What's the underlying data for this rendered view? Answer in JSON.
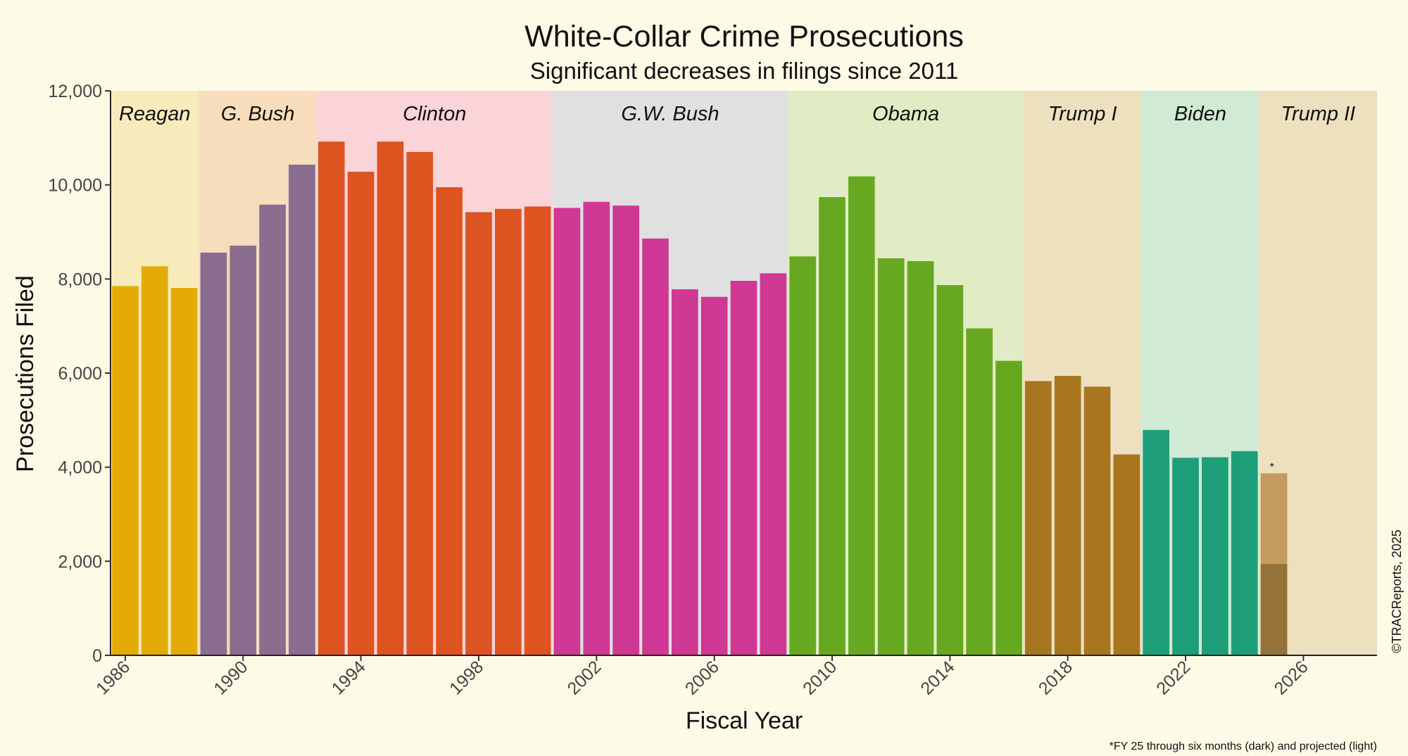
{
  "chart_data": {
    "type": "bar",
    "title": "White-Collar Crime Prosecutions",
    "subtitle": "Significant decreases in filings since 2011",
    "xlabel": "Fiscal Year",
    "ylabel": "Prosecutions Filed",
    "xlim": [
      1985.5,
      2028.5
    ],
    "ylim": [
      0,
      12000
    ],
    "yticks": [
      0,
      2000,
      4000,
      6000,
      8000,
      10000,
      12000
    ],
    "ytick_labels": [
      "0",
      "2,000",
      "4,000",
      "6,000",
      "8,000",
      "10,000",
      "12,000"
    ],
    "xticks": [
      1986,
      1990,
      1994,
      1998,
      2002,
      2006,
      2010,
      2014,
      2018,
      2022,
      2026
    ],
    "xtick_labels": [
      "1986",
      "1990",
      "1994",
      "1998",
      "2002",
      "2006",
      "2010",
      "2014",
      "2018",
      "2022",
      "2026"
    ],
    "grid": false,
    "eras": [
      {
        "name": "Reagan",
        "start": 1986,
        "end": 1988,
        "color": "#f8ebbb",
        "bar_color": "#e4aa06"
      },
      {
        "name": "G. Bush",
        "start": 1989,
        "end": 1992,
        "color": "#f7ddbc",
        "bar_color": "#8b6d8f"
      },
      {
        "name": "Clinton",
        "start": 1993,
        "end": 2000,
        "color": "#fbd4d9",
        "bar_color": "#dc5420"
      },
      {
        "name": "G.W. Bush",
        "start": 2001,
        "end": 2008,
        "color": "#e0e0e0",
        "bar_color": "#cf3894"
      },
      {
        "name": "Obama",
        "start": 2009,
        "end": 2016,
        "color": "#e1ebc4",
        "bar_color": "#67a821"
      },
      {
        "name": "Trump I",
        "start": 2017,
        "end": 2020,
        "color": "#ece0bf",
        "bar_color": "#a7761e"
      },
      {
        "name": "Biden",
        "start": 2021,
        "end": 2024,
        "color": "#d0ead4",
        "bar_color": "#1d9e79"
      },
      {
        "name": "Trump II",
        "start": 2025,
        "end": 2028,
        "color": "#ece0bf",
        "bar_color": "#a7761e"
      }
    ],
    "bars": [
      {
        "year": 1986,
        "value": 7850
      },
      {
        "year": 1987,
        "value": 8270
      },
      {
        "year": 1988,
        "value": 7810
      },
      {
        "year": 1989,
        "value": 8560
      },
      {
        "year": 1990,
        "value": 8710
      },
      {
        "year": 1991,
        "value": 9580
      },
      {
        "year": 1992,
        "value": 10430
      },
      {
        "year": 1993,
        "value": 10920
      },
      {
        "year": 1994,
        "value": 10280
      },
      {
        "year": 1995,
        "value": 10920
      },
      {
        "year": 1996,
        "value": 10700
      },
      {
        "year": 1997,
        "value": 9950
      },
      {
        "year": 1998,
        "value": 9420
      },
      {
        "year": 1999,
        "value": 9490
      },
      {
        "year": 2000,
        "value": 9540
      },
      {
        "year": 2001,
        "value": 9510
      },
      {
        "year": 2002,
        "value": 9640
      },
      {
        "year": 2003,
        "value": 9560
      },
      {
        "year": 2004,
        "value": 8860
      },
      {
        "year": 2005,
        "value": 7780
      },
      {
        "year": 2006,
        "value": 7620
      },
      {
        "year": 2007,
        "value": 7960
      },
      {
        "year": 2008,
        "value": 8120
      },
      {
        "year": 2009,
        "value": 8480
      },
      {
        "year": 2010,
        "value": 9740
      },
      {
        "year": 2011,
        "value": 10180
      },
      {
        "year": 2012,
        "value": 8440
      },
      {
        "year": 2013,
        "value": 8380
      },
      {
        "year": 2014,
        "value": 7870
      },
      {
        "year": 2015,
        "value": 6950
      },
      {
        "year": 2016,
        "value": 6260
      },
      {
        "year": 2017,
        "value": 5830
      },
      {
        "year": 2018,
        "value": 5940
      },
      {
        "year": 2019,
        "value": 5710
      },
      {
        "year": 2020,
        "value": 4270
      },
      {
        "year": 2021,
        "value": 4790
      },
      {
        "year": 2022,
        "value": 4200
      },
      {
        "year": 2023,
        "value": 4210
      },
      {
        "year": 2024,
        "value": 4340
      }
    ],
    "fy25": {
      "year": 2025,
      "six_months": 1940,
      "projected": 3870,
      "color_dark": "#957239",
      "color_light": "#c39b5e",
      "marker": "*"
    },
    "footnote": "*FY 25 through six months (dark) and projected (light)",
    "credit": "©TRACReports, 2025"
  }
}
